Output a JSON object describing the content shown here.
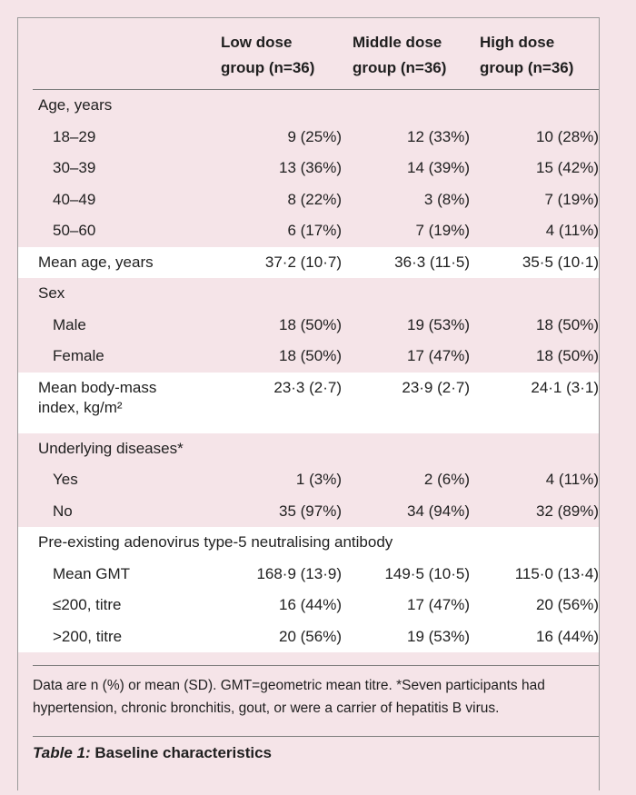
{
  "table": {
    "columns": [
      {
        "line1": "Low dose",
        "line2": "group (n=36)"
      },
      {
        "line1": "Middle dose",
        "line2": "group (n=36)"
      },
      {
        "line1": "High dose",
        "line2": "group (n=36)"
      }
    ],
    "rows": [
      {
        "label": "Age, years",
        "type": "section",
        "values": [
          "",
          "",
          ""
        ]
      },
      {
        "label": "18–29",
        "type": "sub",
        "values": [
          "9 (25%)",
          "12 (33%)",
          "10 (28%)"
        ]
      },
      {
        "label": "30–39",
        "type": "sub",
        "values": [
          "13 (36%)",
          "14 (39%)",
          "15 (42%)"
        ]
      },
      {
        "label": "40–49",
        "type": "sub",
        "values": [
          "8 (22%)",
          "3 (8%)",
          "7 (19%)"
        ]
      },
      {
        "label": "50–60",
        "type": "sub",
        "values": [
          "6 (17%)",
          "7 (19%)",
          "4 (11%)"
        ]
      },
      {
        "label": "Mean age, years",
        "type": "band",
        "values": [
          "37·2 (10·7)",
          "36·3 (11·5)",
          "35·5 (10·1)"
        ]
      },
      {
        "label": "Sex",
        "type": "section",
        "values": [
          "",
          "",
          ""
        ]
      },
      {
        "label": "Male",
        "type": "sub",
        "values": [
          "18 (50%)",
          "19 (53%)",
          "18 (50%)"
        ]
      },
      {
        "label": "Female",
        "type": "sub",
        "values": [
          "18 (50%)",
          "17 (47%)",
          "18 (50%)"
        ]
      },
      {
        "label_line1": "Mean body-mass",
        "label_line2": "index, kg/m²",
        "type": "band-tall",
        "values": [
          "23·3 (2·7)",
          "23·9 (2·7)",
          "24·1 (3·1)"
        ]
      },
      {
        "label": "Underlying diseases*",
        "type": "section",
        "values": [
          "",
          "",
          ""
        ]
      },
      {
        "label": "Yes",
        "type": "sub",
        "values": [
          "1 (3%)",
          "2 (6%)",
          "4 (11%)"
        ]
      },
      {
        "label": "No",
        "type": "sub",
        "values": [
          "35 (97%)",
          "34 (94%)",
          "32 (89%)"
        ]
      },
      {
        "label": "Pre-existing adenovirus type-5 neutralising antibody",
        "type": "band-section",
        "values": [
          "",
          "",
          ""
        ]
      },
      {
        "label": "Mean GMT",
        "type": "band-sub",
        "values": [
          "168·9 (13·9)",
          "149·5 (10·5)",
          "115·0 (13·4)"
        ]
      },
      {
        "label": "≤200, titre",
        "type": "band-sub",
        "values": [
          "16 (44%)",
          "17 (47%)",
          "20 (56%)"
        ]
      },
      {
        "label": ">200, titre",
        "type": "band-sub",
        "values": [
          "20 (56%)",
          "19 (53%)",
          "16 (44%)"
        ]
      }
    ]
  },
  "footnote": "Data are n (%) or mean (SD). GMT=geometric mean titre. *Seven participants had hypertension, chronic bronchitis, gout, or were a carrier of hepatitis B virus.",
  "caption": {
    "label": "Table 1:",
    "title": "Baseline characteristics"
  }
}
